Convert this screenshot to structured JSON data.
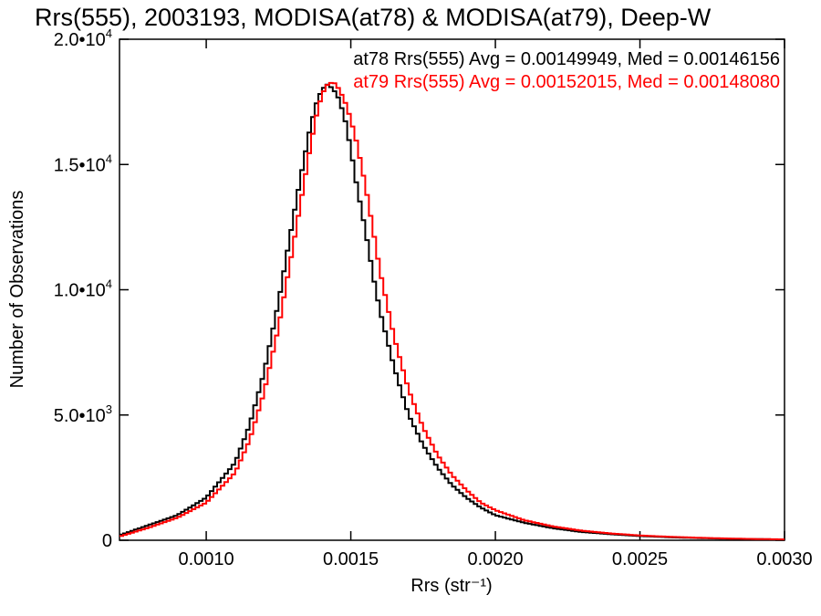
{
  "chart_data": {
    "type": "line",
    "title": "Rrs(555), 2003193, MODISA(at78) & MODISA(at79), Deep-W",
    "xlabel": "Rrs (str⁻¹)",
    "ylabel": "Number of Observations",
    "xlim": [
      0.0007,
      0.003
    ],
    "ylim": [
      0,
      20000
    ],
    "grid": false,
    "legend_position": "top-right",
    "x_ticks": [
      {
        "value": 0.001,
        "label": "0.0010"
      },
      {
        "value": 0.0015,
        "label": "0.0015"
      },
      {
        "value": 0.002,
        "label": "0.0020"
      },
      {
        "value": 0.0025,
        "label": "0.0025"
      },
      {
        "value": 0.003,
        "label": "0.0030"
      }
    ],
    "y_ticks": [
      {
        "value": 0,
        "mantissa": "0",
        "exponent": ""
      },
      {
        "value": 5000,
        "mantissa": "5.0•10",
        "exponent": "3"
      },
      {
        "value": 10000,
        "mantissa": "1.0•10",
        "exponent": "4"
      },
      {
        "value": 15000,
        "mantissa": "1.5•10",
        "exponent": "4"
      },
      {
        "value": 20000,
        "mantissa": "2.0•10",
        "exponent": "4"
      }
    ],
    "annotations": [
      "at78 Rrs(555) Avg = 0.00149949, Med = 0.00146156",
      "at79 Rrs(555) Avg = 0.00152015, Med = 0.00148080"
    ],
    "x": [
      0.0007,
      0.0008,
      0.0009,
      0.001,
      0.0011,
      0.00115,
      0.0012,
      0.00125,
      0.0013,
      0.00133,
      0.00136,
      0.00138,
      0.0014,
      0.00142,
      0.00144,
      0.00146,
      0.00148,
      0.0015,
      0.00152,
      0.00155,
      0.00158,
      0.0016,
      0.00165,
      0.0017,
      0.00175,
      0.0018,
      0.00185,
      0.0019,
      0.00195,
      0.002,
      0.0021,
      0.0022,
      0.0023,
      0.0024,
      0.0025,
      0.0026,
      0.0027,
      0.0028,
      0.0029,
      0.003
    ],
    "series": [
      {
        "values": [
          200,
          600,
          1000,
          1700,
          3100,
          4600,
          6700,
          9500,
          12800,
          14700,
          16500,
          17400,
          18000,
          18200,
          18000,
          17600,
          16800,
          15600,
          14200,
          12400,
          10400,
          9200,
          6900,
          5000,
          3800,
          2900,
          2200,
          1700,
          1300,
          1000,
          700,
          480,
          330,
          240,
          170,
          120,
          90,
          60,
          45,
          30
        ],
        "color": "#000000"
      },
      {
        "values": [
          150,
          500,
          900,
          1500,
          2700,
          4000,
          5900,
          8500,
          11700,
          13700,
          15700,
          16900,
          17800,
          18200,
          18300,
          18000,
          17500,
          16800,
          15900,
          14200,
          12200,
          10800,
          8100,
          6000,
          4500,
          3400,
          2600,
          2000,
          1500,
          1200,
          800,
          550,
          380,
          270,
          190,
          140,
          100,
          70,
          50,
          35
        ],
        "color": "#ff0000"
      }
    ]
  }
}
